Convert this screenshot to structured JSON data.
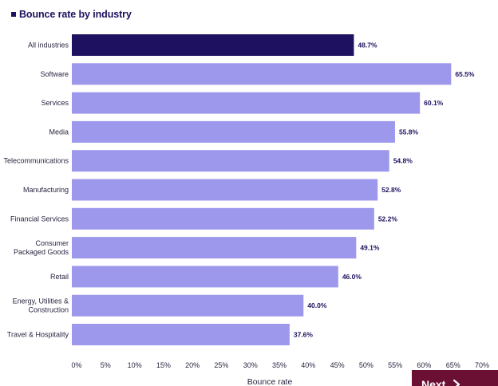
{
  "chart_data": {
    "type": "bar",
    "orientation": "horizontal",
    "title": "Bounce rate by industry",
    "xlabel": "Bounce rate",
    "ylabel": "",
    "xlim": [
      0,
      70
    ],
    "ticks": [
      "0%",
      "5%",
      "10%",
      "15%",
      "20%",
      "25%",
      "30%",
      "35%",
      "40%",
      "45%",
      "50%",
      "55%",
      "60%",
      "65%",
      "70%"
    ],
    "categories": [
      [
        "All industries"
      ],
      [
        "Software"
      ],
      [
        "Services"
      ],
      [
        "Media"
      ],
      [
        "Telecommunications"
      ],
      [
        "Manufacturing"
      ],
      [
        "Financial Services"
      ],
      [
        "Consumer",
        "Packaged Goods"
      ],
      [
        "Retail"
      ],
      [
        "Energy, Utilities &",
        "Construction"
      ],
      [
        "Travel & Hospitality"
      ]
    ],
    "values": [
      48.7,
      65.5,
      60.1,
      55.8,
      54.8,
      52.8,
      52.2,
      49.1,
      46.0,
      40.0,
      37.6
    ],
    "value_labels": [
      "48.7%",
      "65.5%",
      "60.1%",
      "55.8%",
      "54.8%",
      "52.8%",
      "52.2%",
      "49.1%",
      "46.0%",
      "40.0%",
      "37.6%"
    ],
    "highlight_index": 0,
    "colors": {
      "highlight": "#1d1160",
      "bar": "#9d98ec",
      "text": "#2a2540"
    },
    "grid": false,
    "legend": "none"
  },
  "navigation": {
    "next_label": "Next",
    "next_icon": "chevron-right-icon",
    "color": "#6b0f33"
  }
}
